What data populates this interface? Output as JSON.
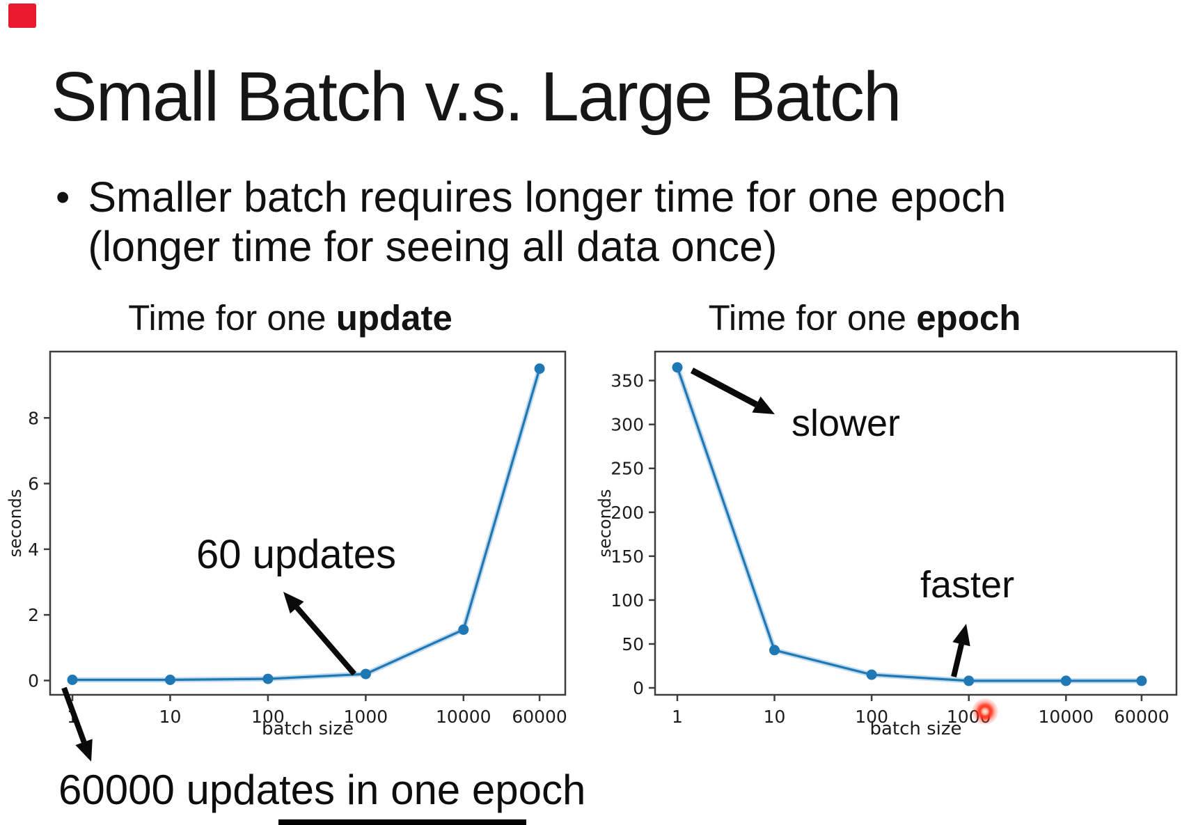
{
  "slide": {
    "title": "Small Batch v.s. Large Batch",
    "bullet_glyph": "•",
    "bullet_line1": "Smaller batch requires longer time for one epoch",
    "bullet_line2": "(longer time for seeing all data once)"
  },
  "subtitles": {
    "left_prefix": "Time for one ",
    "left_bold": "update",
    "right_prefix": "Time for one ",
    "right_bold": "epoch"
  },
  "annotations": {
    "updates_60": "60 updates",
    "updates_60000": "60000 updates in one epoch",
    "slower": "slower",
    "faster": "faster"
  },
  "colors": {
    "series_blue": "#1f77b4",
    "series_halo": "#8cbcde",
    "axis": "#3d3d3d",
    "tick_text": "#1c1c1c",
    "arrow_black": "#0a0a0a",
    "laser_red": "#ff2616",
    "corner_red": "#e8192c",
    "bottom_bar": "#000000"
  },
  "chart_data": [
    {
      "type": "line",
      "title": "Time for one update",
      "title_bold_word": "update",
      "xlabel": "batch size",
      "ylabel": "seconds",
      "xscale": "log",
      "x": [
        1,
        10,
        100,
        1000,
        10000,
        60000
      ],
      "values": [
        0.02,
        0.02,
        0.05,
        0.2,
        1.55,
        9.5
      ],
      "xticks": [
        1,
        10,
        100,
        1000,
        10000,
        60000
      ],
      "xtick_labels": [
        "1",
        "10",
        "100",
        "1000",
        "10000",
        "60000"
      ],
      "yticks": [
        0,
        2,
        4,
        6,
        8
      ],
      "ytick_labels": [
        "0",
        "2",
        "4",
        "6",
        "8"
      ],
      "ylim": [
        -0.435,
        10.02
      ],
      "xlim_log": [
        -0.228,
        5.041
      ],
      "grid": false,
      "legend": null,
      "annotations": [
        "60000 updates in one epoch",
        "60 updates"
      ]
    },
    {
      "type": "line",
      "title": "Time for one epoch",
      "title_bold_word": "epoch",
      "xlabel": "batch size",
      "ylabel": "seconds",
      "xscale": "log",
      "x": [
        1,
        10,
        100,
        1000,
        10000,
        60000
      ],
      "values": [
        365,
        43,
        15,
        8,
        8,
        8
      ],
      "xticks": [
        1,
        10,
        100,
        1000,
        10000,
        60000
      ],
      "xtick_labels": [
        "1",
        "10",
        "100",
        "1000",
        "10000",
        "60000"
      ],
      "yticks": [
        0,
        50,
        100,
        150,
        200,
        250,
        300,
        350
      ],
      "ytick_labels": [
        "0",
        "50",
        "100",
        "150",
        "200",
        "250",
        "300",
        "350"
      ],
      "ylim": [
        -7.9,
        383
      ],
      "xlim_log": [
        -0.229,
        5.137
      ],
      "grid": false,
      "legend": null,
      "annotations": [
        "slower",
        "faster"
      ]
    }
  ],
  "arrows": [
    {
      "name": "arrow-60000-updates",
      "from": [
        92,
        988
      ],
      "to": [
        131,
        1094
      ],
      "width": 8
    },
    {
      "name": "arrow-60-updates",
      "from": [
        509,
        968
      ],
      "to": [
        407,
        850
      ],
      "width": 8
    },
    {
      "name": "arrow-slower",
      "from": [
        994,
        532
      ],
      "to": [
        1113,
        595
      ],
      "width": 9
    },
    {
      "name": "arrow-faster",
      "from": [
        1370,
        972
      ],
      "to": [
        1388,
        896
      ],
      "width": 8
    }
  ]
}
